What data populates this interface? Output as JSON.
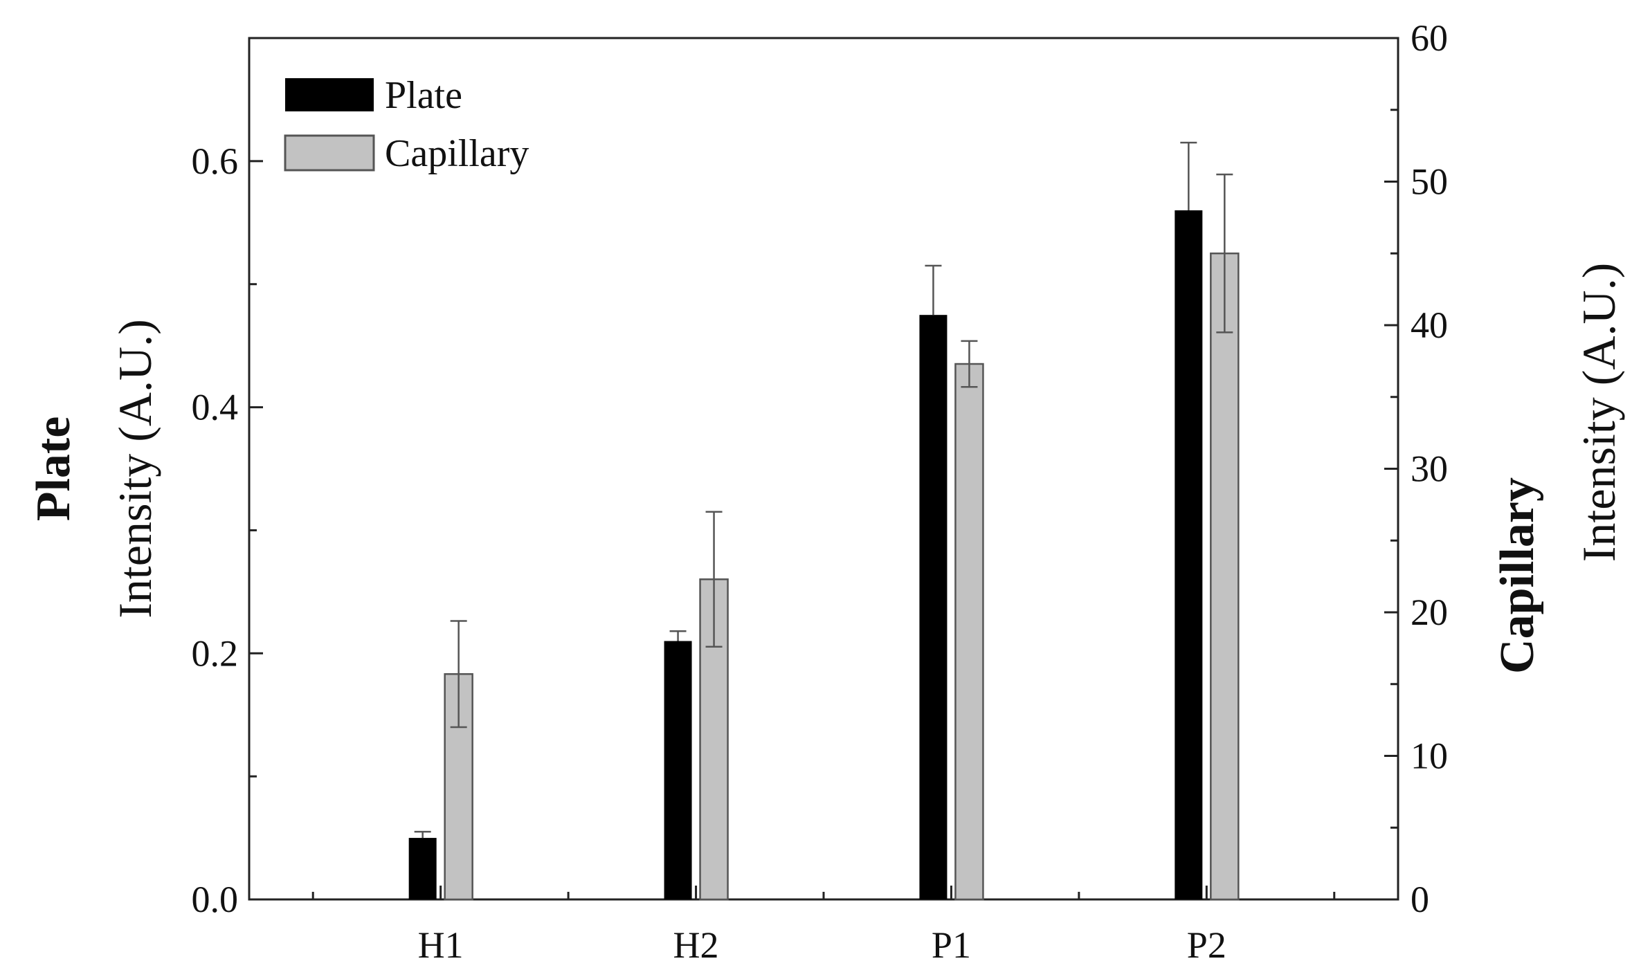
{
  "chart_data": {
    "type": "bar",
    "categories": [
      "H1",
      "H2",
      "P1",
      "P2"
    ],
    "series": [
      {
        "name": "Plate",
        "axis": "left",
        "color": "#000000",
        "values": [
          0.05,
          0.21,
          0.475,
          0.56
        ],
        "errors": [
          0.005,
          0.008,
          0.04,
          0.055
        ]
      },
      {
        "name": "Capillary",
        "axis": "right",
        "color": "#c2c2c2",
        "values": [
          15.7,
          22.3,
          37.3,
          45.0
        ],
        "errors": [
          3.7,
          4.7,
          1.6,
          5.5
        ]
      }
    ],
    "left_axis": {
      "title_bold": "Plate",
      "title": "Intensity (A.U.)",
      "ylim": [
        0,
        0.7
      ],
      "ticks": [
        "0.0",
        "0.2",
        "0.4",
        "0.6"
      ],
      "tick_values": [
        0,
        0.2,
        0.4,
        0.6
      ],
      "minor_tick_values": [
        0.1,
        0.3,
        0.5
      ]
    },
    "right_axis": {
      "title_bold": "Capillary",
      "title": "Intensity (A.U.)",
      "ylim": [
        0,
        60
      ],
      "ticks": [
        "0",
        "10",
        "20",
        "30",
        "40",
        "50",
        "60"
      ],
      "tick_values": [
        0,
        10,
        20,
        30,
        40,
        50,
        60
      ],
      "minor_tick_values": [
        5,
        15,
        25,
        35,
        45,
        55
      ]
    },
    "legend": {
      "position": "top-left",
      "entries": [
        "Plate",
        "Capillary"
      ]
    },
    "grid": false
  }
}
